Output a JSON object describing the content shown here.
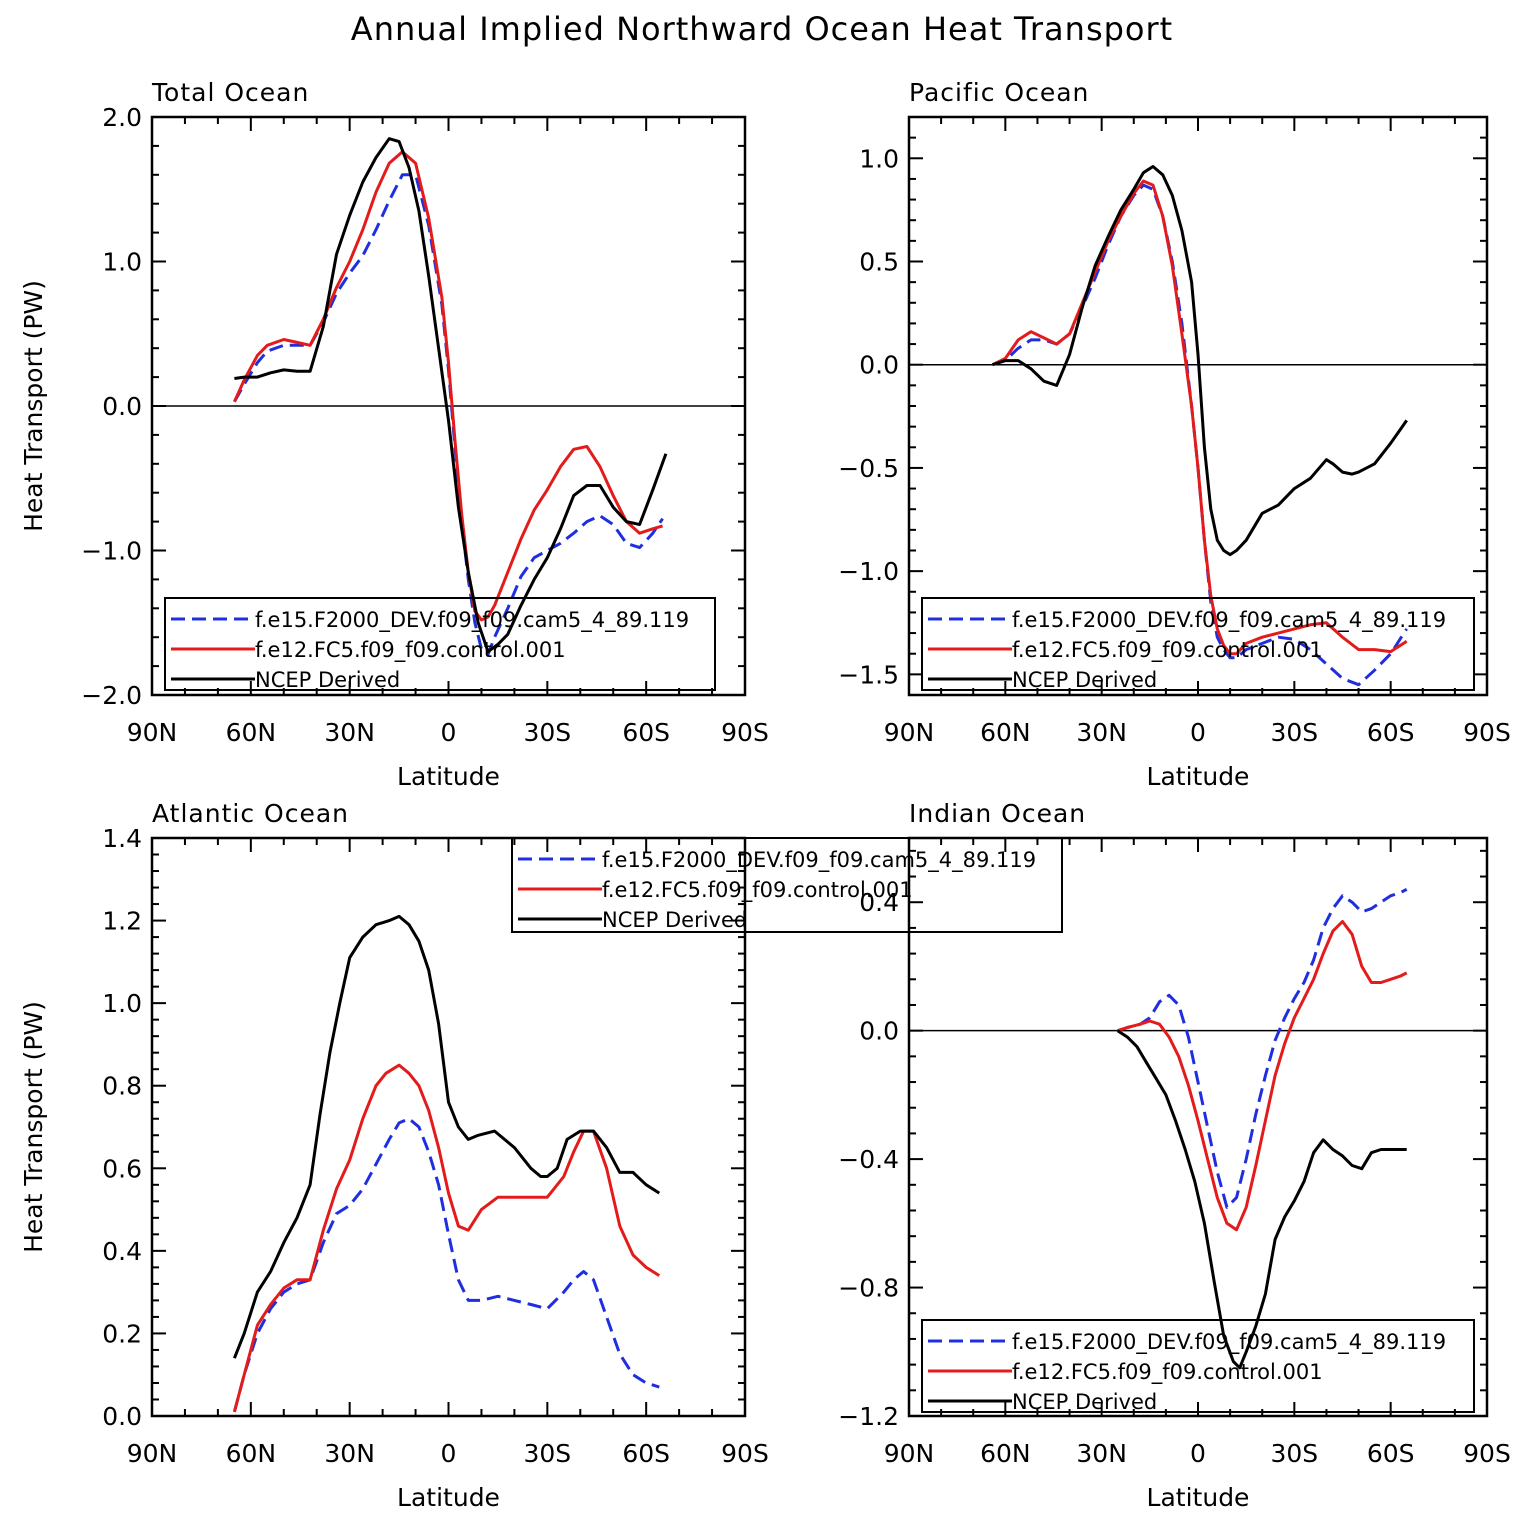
{
  "title": "Annual Implied Northward Ocean Heat Transport",
  "x_ticks": [
    "90N",
    "60N",
    "30N",
    "0",
    "30S",
    "60S",
    "90S"
  ],
  "xlabel": "Latitude",
  "ylabel": "Heat Transport (PW)",
  "legend_labels": [
    "f.e15.F2000_DEV.f09_f09.cam5_4_89.119",
    "f.e12.FC5.f09_f09.control.001",
    "NCEP Derived"
  ],
  "colors": {
    "exp": "#1f2fe0",
    "ctrl": "#e31b1b",
    "ncep": "#000000"
  },
  "chart_data": [
    {
      "type": "line",
      "title": "Total Ocean",
      "xlabel": "Latitude",
      "ylabel": "Heat Transport (PW)",
      "xlim": [
        90,
        -90
      ],
      "ylim": [
        -2.0,
        2.0
      ],
      "yticks": [
        2.0,
        1.0,
        0.0,
        -1.0,
        -2.0
      ],
      "ytick_labels": [
        "2.0",
        "1.0",
        "0.0",
        "−1.0",
        "−2.0"
      ],
      "zero_line": true,
      "legend": "bottom-left",
      "series": [
        {
          "name": "f.e15.F2000_DEV.f09_f09.cam5_4_89.119",
          "style": "dashed",
          "color": "#1f2fe0",
          "x": [
            65,
            62,
            58,
            55,
            50,
            46,
            42,
            38,
            34,
            30,
            26,
            22,
            18,
            14,
            10,
            6,
            2,
            0,
            -2,
            -4,
            -6,
            -8,
            -10,
            -12,
            -14,
            -18,
            -22,
            -26,
            -30,
            -34,
            -38,
            -42,
            -46,
            -50,
            -54,
            -58,
            -62,
            -65
          ],
          "y": [
            0.03,
            0.15,
            0.3,
            0.38,
            0.42,
            0.42,
            0.42,
            0.58,
            0.78,
            0.92,
            1.04,
            1.22,
            1.42,
            1.6,
            1.6,
            1.25,
            0.7,
            0.25,
            -0.3,
            -0.8,
            -1.2,
            -1.5,
            -1.68,
            -1.72,
            -1.6,
            -1.4,
            -1.18,
            -1.05,
            -1.0,
            -0.95,
            -0.88,
            -0.8,
            -0.76,
            -0.82,
            -0.95,
            -0.98,
            -0.88,
            -0.78
          ]
        },
        {
          "name": "f.e12.FC5.f09_f09.control.001",
          "style": "solid",
          "color": "#e31b1b",
          "x": [
            65,
            62,
            58,
            55,
            50,
            46,
            42,
            38,
            34,
            30,
            26,
            22,
            18,
            14,
            10,
            6,
            2,
            0,
            -2,
            -4,
            -6,
            -8,
            -10,
            -12,
            -14,
            -18,
            -22,
            -26,
            -30,
            -34,
            -38,
            -42,
            -46,
            -50,
            -54,
            -58,
            -62,
            -65
          ],
          "y": [
            0.03,
            0.18,
            0.35,
            0.42,
            0.46,
            0.44,
            0.42,
            0.6,
            0.82,
            1.0,
            1.22,
            1.48,
            1.68,
            1.76,
            1.68,
            1.3,
            0.75,
            0.3,
            -0.25,
            -0.75,
            -1.15,
            -1.42,
            -1.48,
            -1.46,
            -1.38,
            -1.15,
            -0.92,
            -0.72,
            -0.58,
            -0.42,
            -0.3,
            -0.28,
            -0.42,
            -0.62,
            -0.8,
            -0.88,
            -0.85,
            -0.83
          ]
        },
        {
          "name": "NCEP Derived",
          "style": "solid",
          "color": "#000000",
          "x": [
            65,
            62,
            58,
            54,
            50,
            46,
            42,
            38,
            34,
            30,
            26,
            22,
            18,
            15,
            12,
            9,
            6,
            3,
            0,
            -3,
            -6,
            -9,
            -12,
            -15,
            -18,
            -22,
            -26,
            -30,
            -34,
            -38,
            -42,
            -46,
            -50,
            -54,
            -58,
            -62,
            -66
          ],
          "y": [
            0.19,
            0.2,
            0.2,
            0.23,
            0.25,
            0.24,
            0.24,
            0.55,
            1.05,
            1.32,
            1.55,
            1.72,
            1.85,
            1.83,
            1.65,
            1.35,
            0.9,
            0.4,
            -0.1,
            -0.7,
            -1.15,
            -1.5,
            -1.7,
            -1.65,
            -1.58,
            -1.38,
            -1.2,
            -1.05,
            -0.85,
            -0.62,
            -0.55,
            -0.55,
            -0.7,
            -0.8,
            -0.82,
            -0.58,
            -0.33
          ]
        }
      ]
    },
    {
      "type": "line",
      "title": "Pacific Ocean",
      "xlabel": "Latitude",
      "ylabel": "",
      "xlim": [
        90,
        -90
      ],
      "ylim": [
        -1.6,
        1.2
      ],
      "yticks": [
        1.0,
        0.5,
        0.0,
        -0.5,
        -1.0,
        -1.5
      ],
      "ytick_labels": [
        "1.0",
        "0.5",
        "0.0",
        "−0.5",
        "−1.0",
        "−1.5"
      ],
      "zero_line": true,
      "legend": "bottom-right",
      "series": [
        {
          "name": "f.e15.F2000_DEV.f09_f09.cam5_4_89.119",
          "style": "dashed",
          "color": "#1f2fe0",
          "x": [
            64,
            60,
            56,
            52,
            48,
            44,
            40,
            36,
            32,
            28,
            24,
            20,
            17,
            14,
            11,
            8,
            5,
            2,
            0,
            -2,
            -4,
            -6,
            -8,
            -10,
            -12,
            -15,
            -20,
            -25,
            -30,
            -35,
            -40,
            -45,
            -50,
            -55,
            -60,
            -65
          ],
          "y": [
            0.0,
            0.02,
            0.08,
            0.12,
            0.12,
            0.1,
            0.15,
            0.28,
            0.42,
            0.58,
            0.72,
            0.82,
            0.87,
            0.85,
            0.72,
            0.5,
            0.2,
            -0.2,
            -0.5,
            -0.85,
            -1.15,
            -1.32,
            -1.38,
            -1.42,
            -1.42,
            -1.38,
            -1.35,
            -1.32,
            -1.33,
            -1.38,
            -1.45,
            -1.52,
            -1.55,
            -1.48,
            -1.4,
            -1.28
          ]
        },
        {
          "name": "f.e12.FC5.f09_f09.control.001",
          "style": "solid",
          "color": "#e31b1b",
          "x": [
            64,
            60,
            56,
            52,
            48,
            44,
            40,
            36,
            32,
            28,
            24,
            20,
            17,
            14,
            11,
            8,
            5,
            2,
            0,
            -2,
            -4,
            -6,
            -8,
            -10,
            -12,
            -15,
            -20,
            -25,
            -30,
            -35,
            -40,
            -45,
            -50,
            -55,
            -60,
            -65
          ],
          "y": [
            0.0,
            0.03,
            0.12,
            0.16,
            0.13,
            0.1,
            0.15,
            0.3,
            0.45,
            0.6,
            0.72,
            0.83,
            0.89,
            0.87,
            0.72,
            0.48,
            0.15,
            -0.2,
            -0.5,
            -0.85,
            -1.12,
            -1.28,
            -1.36,
            -1.4,
            -1.4,
            -1.35,
            -1.32,
            -1.3,
            -1.28,
            -1.26,
            -1.25,
            -1.32,
            -1.38,
            -1.38,
            -1.39,
            -1.34
          ]
        },
        {
          "name": "NCEP Derived",
          "style": "solid",
          "color": "#000000",
          "x": [
            64,
            60,
            56,
            52,
            48,
            44,
            40,
            36,
            32,
            28,
            24,
            20,
            17,
            14,
            11,
            8,
            5,
            2,
            0,
            -2,
            -4,
            -6,
            -8,
            -10,
            -12,
            -15,
            -20,
            -25,
            -30,
            -35,
            -40,
            -42,
            -45,
            -48,
            -50,
            -55,
            -60,
            -65
          ],
          "y": [
            0.0,
            0.02,
            0.02,
            -0.02,
            -0.08,
            -0.1,
            0.05,
            0.28,
            0.48,
            0.62,
            0.75,
            0.85,
            0.93,
            0.96,
            0.92,
            0.82,
            0.65,
            0.4,
            0.05,
            -0.4,
            -0.7,
            -0.85,
            -0.9,
            -0.92,
            -0.9,
            -0.85,
            -0.72,
            -0.68,
            -0.6,
            -0.55,
            -0.46,
            -0.48,
            -0.52,
            -0.53,
            -0.52,
            -0.48,
            -0.38,
            -0.27
          ]
        }
      ]
    },
    {
      "type": "line",
      "title": "Atlantic Ocean",
      "xlabel": "Latitude",
      "ylabel": "Heat Transport (PW)",
      "xlim": [
        90,
        -90
      ],
      "ylim": [
        0.0,
        1.4
      ],
      "yticks": [
        1.4,
        1.2,
        1.0,
        0.8,
        0.6,
        0.4,
        0.2,
        0.0
      ],
      "ytick_labels": [
        "1.4",
        "1.2",
        "1.0",
        "0.8",
        "0.6",
        "0.4",
        "0.2",
        "0.0"
      ],
      "zero_line": false,
      "legend": "top-center",
      "series": [
        {
          "name": "f.e15.F2000_DEV.f09_f09.cam5_4_89.119",
          "style": "dashed",
          "color": "#1f2fe0",
          "x": [
            65,
            62,
            58,
            54,
            50,
            46,
            42,
            38,
            34,
            30,
            26,
            22,
            18,
            15,
            12,
            9,
            6,
            3,
            0,
            -3,
            -6,
            -10,
            -15,
            -20,
            -25,
            -30,
            -35,
            -38,
            -41,
            -44,
            -48,
            -52,
            -56,
            -60,
            -64
          ],
          "y": [
            0.01,
            0.1,
            0.2,
            0.26,
            0.3,
            0.32,
            0.33,
            0.42,
            0.49,
            0.51,
            0.55,
            0.61,
            0.67,
            0.71,
            0.72,
            0.7,
            0.64,
            0.56,
            0.44,
            0.33,
            0.28,
            0.28,
            0.29,
            0.28,
            0.27,
            0.26,
            0.3,
            0.33,
            0.35,
            0.33,
            0.24,
            0.15,
            0.1,
            0.08,
            0.07
          ]
        },
        {
          "name": "f.e12.FC5.f09_f09.control.001",
          "style": "solid",
          "color": "#e31b1b",
          "x": [
            65,
            62,
            58,
            54,
            50,
            46,
            42,
            38,
            34,
            30,
            26,
            22,
            19,
            15,
            12,
            9,
            6,
            3,
            0,
            -3,
            -6,
            -10,
            -15,
            -20,
            -25,
            -30,
            -35,
            -38,
            -41,
            -44,
            -48,
            -52,
            -56,
            -60,
            -64
          ],
          "y": [
            0.01,
            0.1,
            0.22,
            0.27,
            0.31,
            0.33,
            0.33,
            0.45,
            0.55,
            0.62,
            0.72,
            0.8,
            0.83,
            0.85,
            0.83,
            0.8,
            0.74,
            0.65,
            0.54,
            0.46,
            0.45,
            0.5,
            0.53,
            0.53,
            0.53,
            0.53,
            0.58,
            0.64,
            0.69,
            0.69,
            0.6,
            0.46,
            0.39,
            0.36,
            0.34
          ]
        },
        {
          "name": "NCEP Derived",
          "style": "solid",
          "color": "#000000",
          "x": [
            65,
            62,
            58,
            54,
            50,
            46,
            42,
            39,
            36,
            33,
            30,
            26,
            22,
            18,
            15,
            12,
            9,
            6,
            3,
            0,
            -3,
            -6,
            -9,
            -14,
            -20,
            -25,
            -28,
            -30,
            -33,
            -36,
            -40,
            -44,
            -48,
            -52,
            -56,
            -60,
            -64
          ],
          "y": [
            0.14,
            0.2,
            0.3,
            0.35,
            0.42,
            0.48,
            0.56,
            0.73,
            0.88,
            1.0,
            1.11,
            1.16,
            1.19,
            1.2,
            1.21,
            1.19,
            1.15,
            1.08,
            0.95,
            0.76,
            0.7,
            0.67,
            0.68,
            0.69,
            0.65,
            0.6,
            0.58,
            0.58,
            0.6,
            0.67,
            0.69,
            0.69,
            0.65,
            0.59,
            0.59,
            0.56,
            0.54
          ]
        }
      ]
    },
    {
      "type": "line",
      "title": "Indian Ocean",
      "xlabel": "Latitude",
      "ylabel": "",
      "xlim": [
        90,
        -90
      ],
      "ylim": [
        -1.2,
        0.6
      ],
      "yticks": [
        0.4,
        0.0,
        -0.4,
        -0.8,
        -1.2
      ],
      "ytick_labels": [
        "0.4",
        "0.0",
        "−0.4",
        "−0.8",
        "−1.2"
      ],
      "zero_line": true,
      "legend": "bottom-right",
      "series": [
        {
          "name": "f.e15.F2000_DEV.f09_f09.cam5_4_89.119",
          "style": "dashed",
          "color": "#1f2fe0",
          "x": [
            25,
            22,
            18,
            15,
            12,
            9,
            6,
            3,
            0,
            -3,
            -6,
            -9,
            -12,
            -15,
            -18,
            -21,
            -24,
            -27,
            -30,
            -33,
            -36,
            -39,
            -42,
            -45,
            -48,
            -51,
            -54,
            -57,
            -60,
            -63,
            -65
          ],
          "y": [
            0.0,
            0.01,
            0.02,
            0.04,
            0.09,
            0.11,
            0.08,
            -0.02,
            -0.16,
            -0.3,
            -0.44,
            -0.55,
            -0.52,
            -0.4,
            -0.26,
            -0.14,
            -0.03,
            0.04,
            0.1,
            0.15,
            0.22,
            0.32,
            0.38,
            0.42,
            0.4,
            0.37,
            0.38,
            0.4,
            0.42,
            0.43,
            0.44
          ]
        },
        {
          "name": "f.e12.FC5.f09_f09.control.001",
          "style": "solid",
          "color": "#e31b1b",
          "x": [
            25,
            22,
            18,
            15,
            12,
            9,
            6,
            3,
            0,
            -3,
            -6,
            -9,
            -12,
            -15,
            -18,
            -21,
            -24,
            -27,
            -30,
            -33,
            -36,
            -39,
            -42,
            -45,
            -48,
            -51,
            -54,
            -57,
            -60,
            -63,
            -65
          ],
          "y": [
            0.0,
            0.01,
            0.02,
            0.03,
            0.02,
            -0.02,
            -0.08,
            -0.17,
            -0.28,
            -0.4,
            -0.52,
            -0.6,
            -0.62,
            -0.55,
            -0.42,
            -0.28,
            -0.14,
            -0.04,
            0.04,
            0.1,
            0.16,
            0.24,
            0.31,
            0.34,
            0.3,
            0.2,
            0.15,
            0.15,
            0.16,
            0.17,
            0.18
          ]
        },
        {
          "name": "NCEP Derived",
          "style": "solid",
          "color": "#000000",
          "x": [
            25,
            22,
            19,
            16,
            13,
            10,
            7,
            4,
            1,
            -2,
            -5,
            -8,
            -11,
            -13,
            -15,
            -18,
            -21,
            -24,
            -27,
            -30,
            -33,
            -36,
            -39,
            -42,
            -45,
            -48,
            -51,
            -54,
            -57,
            -60,
            -63,
            -65
          ],
          "y": [
            0.0,
            -0.02,
            -0.05,
            -0.1,
            -0.15,
            -0.2,
            -0.28,
            -0.37,
            -0.47,
            -0.6,
            -0.78,
            -0.95,
            -1.03,
            -1.05,
            -1.0,
            -0.92,
            -0.82,
            -0.65,
            -0.58,
            -0.53,
            -0.47,
            -0.38,
            -0.34,
            -0.37,
            -0.39,
            -0.42,
            -0.43,
            -0.38,
            -0.37,
            -0.37,
            -0.37,
            -0.37
          ]
        }
      ]
    }
  ]
}
